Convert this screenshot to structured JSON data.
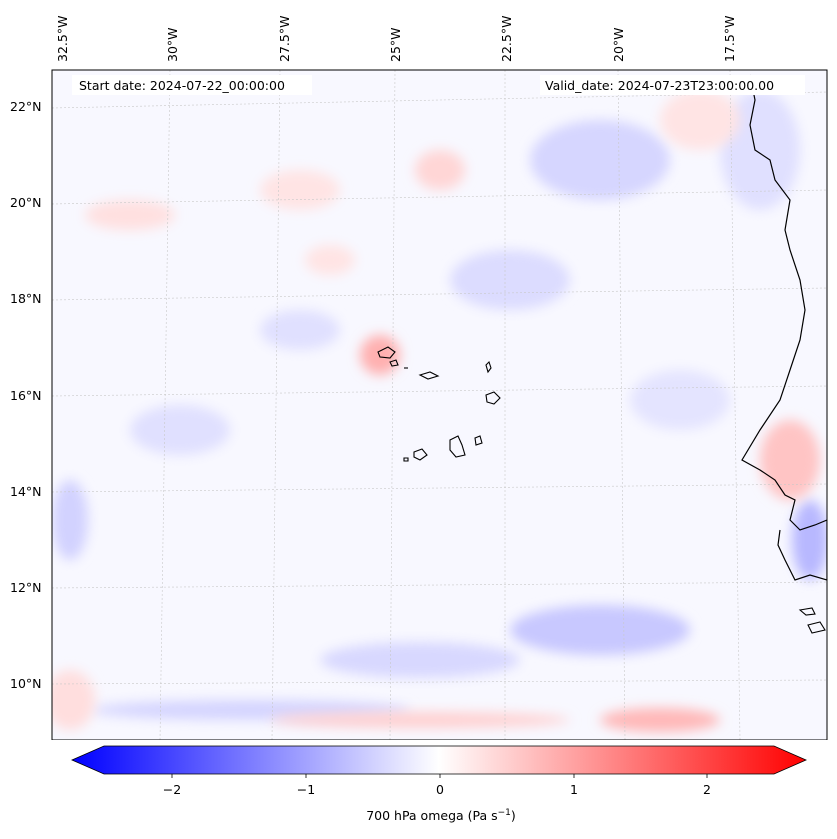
{
  "info": {
    "start_date": "Start date: 2024-07-22_00:00:00",
    "valid_date": "Valid_date: 2024-07-23T23:00:00.00"
  },
  "lon_labels": [
    "32.5°W",
    "30°W",
    "27.5°W",
    "25°W",
    "22.5°W",
    "20°W",
    "17.5°W"
  ],
  "lat_labels": [
    "22°N",
    "20°N",
    "18°N",
    "16°N",
    "14°N",
    "12°N",
    "10°N"
  ],
  "colorbar": {
    "ticks": [
      "−2",
      "−1",
      "0",
      "1",
      "2"
    ],
    "label_main": "700 hPa omega (Pa s",
    "label_sup": "−1",
    "label_end": ")",
    "negative_color": "#0000ff",
    "positive_color": "#ff0000"
  },
  "map": {
    "region": "Cape Verde / West African coast",
    "gridlines": true,
    "field": "700 hPa omega"
  }
}
